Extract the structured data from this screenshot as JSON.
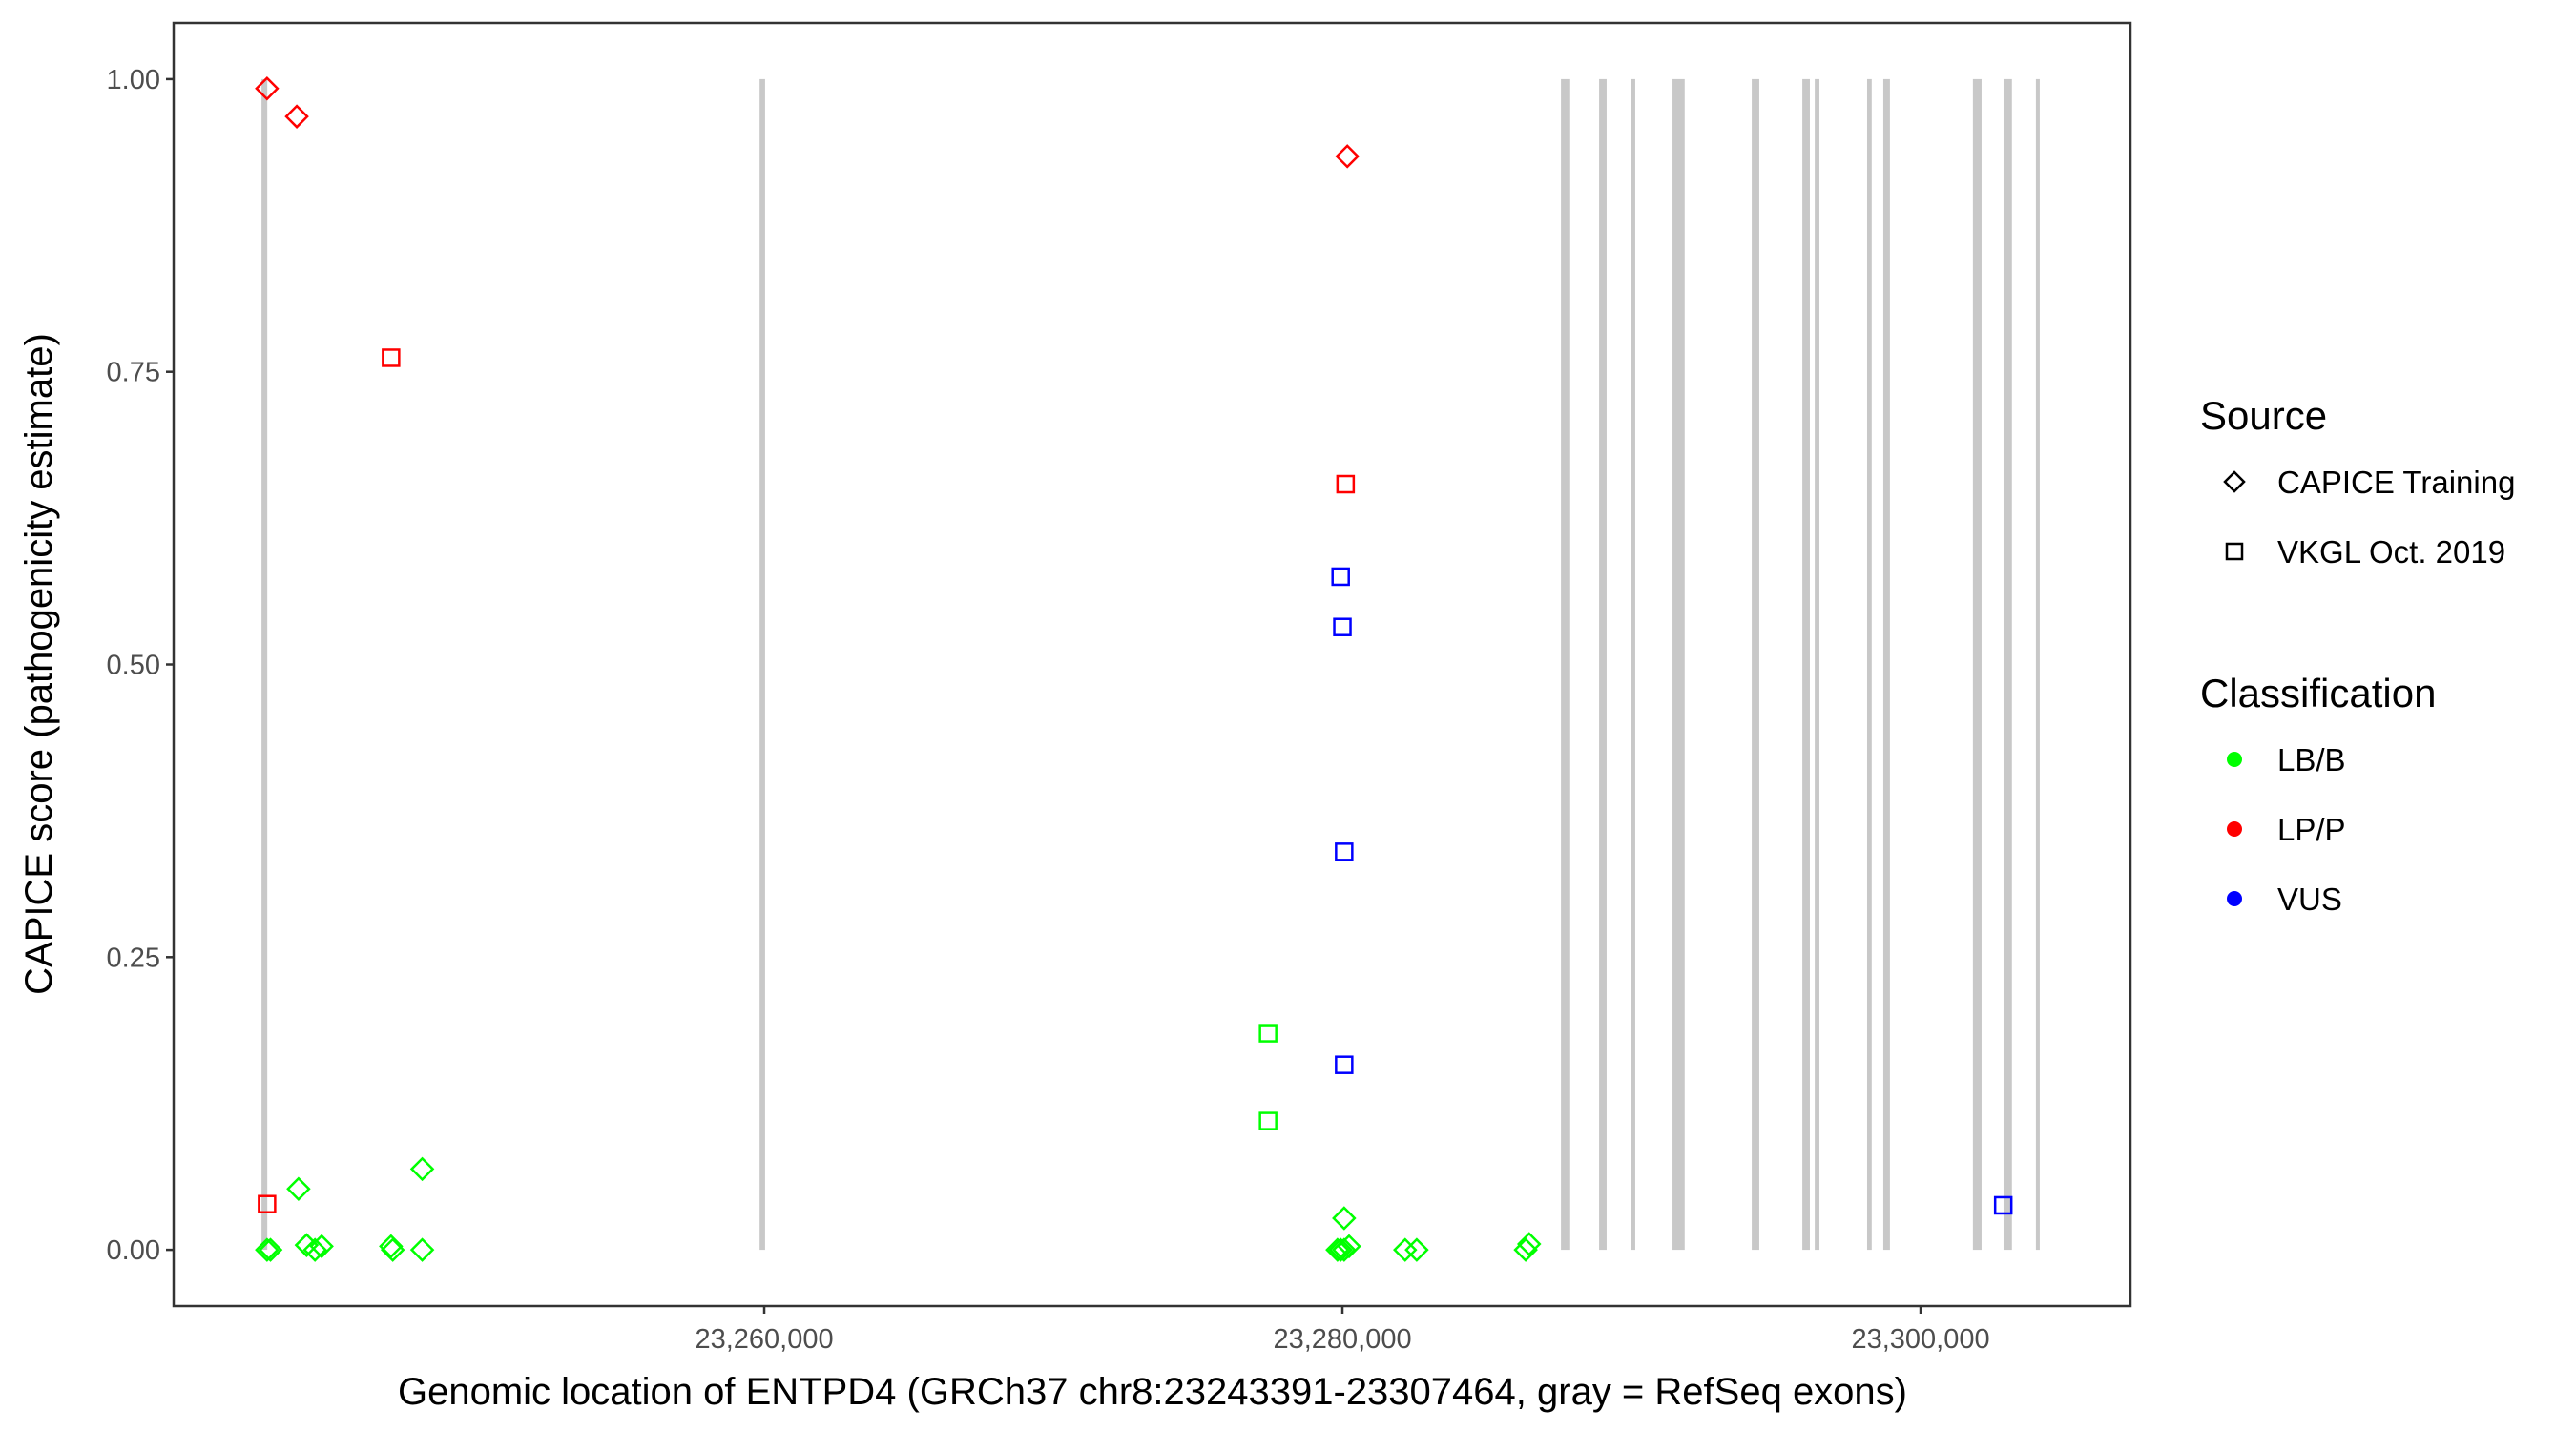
{
  "chart_data": {
    "type": "scatter",
    "xlabel": "Genomic location of ENTPD4 (GRCh37 chr8:23243391-23307464, gray = RefSeq exons)",
    "ylabel": "CAPICE score (pathogenicity estimate)",
    "xlim": [
      23239570,
      23307260
    ],
    "ylim": [
      -0.048,
      1.048
    ],
    "x_ticks": [
      23260000,
      23280000,
      23300000
    ],
    "x_tick_labels": [
      "23,260,000",
      "23,280,000",
      "23,300,000"
    ],
    "y_ticks": [
      0,
      0.25,
      0.5,
      0.75,
      1.0
    ],
    "y_tick_labels": [
      "0.00",
      "0.25",
      "0.50",
      "0.75",
      "1.00"
    ],
    "grid": false,
    "legend_placement": "right",
    "exon_color": "#c8c8c8",
    "exons": [
      [
        23242610,
        23242810
      ],
      [
        23259840,
        23260030
      ],
      [
        23287560,
        23287880
      ],
      [
        23288880,
        23289140
      ],
      [
        23289970,
        23290130
      ],
      [
        23291420,
        23291840
      ],
      [
        23294160,
        23294420
      ],
      [
        23295910,
        23296170
      ],
      [
        23296340,
        23296500
      ],
      [
        23298150,
        23298310
      ],
      [
        23298710,
        23298940
      ],
      [
        23301810,
        23302110
      ],
      [
        23302870,
        23303160
      ],
      [
        23303990,
        23304090
      ]
    ],
    "legend": {
      "source": {
        "title": "Source",
        "items": [
          {
            "label": "CAPICE Training",
            "shape": "diamond"
          },
          {
            "label": "VKGL Oct. 2019",
            "shape": "square"
          }
        ]
      },
      "classification": {
        "title": "Classification",
        "items": [
          {
            "label": "LB/B",
            "color": "#00ff00"
          },
          {
            "label": "LP/P",
            "color": "#ff0000"
          },
          {
            "label": "VUS",
            "color": "#0000ff"
          }
        ]
      }
    },
    "points": [
      {
        "x": 23242800,
        "y": 0.992,
        "source": "CAPICE Training",
        "class": "LP/P"
      },
      {
        "x": 23243830,
        "y": 0.968,
        "source": "CAPICE Training",
        "class": "LP/P"
      },
      {
        "x": 23247090,
        "y": 0.762,
        "source": "VKGL Oct. 2019",
        "class": "LP/P"
      },
      {
        "x": 23242800,
        "y": 0.039,
        "source": "VKGL Oct. 2019",
        "class": "LP/P"
      },
      {
        "x": 23243890,
        "y": 0.052,
        "source": "CAPICE Training",
        "class": "LB/B"
      },
      {
        "x": 23248170,
        "y": 0.069,
        "source": "CAPICE Training",
        "class": "LB/B"
      },
      {
        "x": 23242800,
        "y": 0.0,
        "source": "CAPICE Training",
        "class": "LB/B"
      },
      {
        "x": 23242920,
        "y": 0.0,
        "source": "CAPICE Training",
        "class": "LB/B"
      },
      {
        "x": 23244170,
        "y": 0.004,
        "source": "CAPICE Training",
        "class": "LB/B"
      },
      {
        "x": 23244460,
        "y": 0.0,
        "source": "CAPICE Training",
        "class": "LB/B"
      },
      {
        "x": 23244690,
        "y": 0.003,
        "source": "CAPICE Training",
        "class": "LB/B"
      },
      {
        "x": 23247090,
        "y": 0.003,
        "source": "CAPICE Training",
        "class": "LB/B"
      },
      {
        "x": 23247150,
        "y": 0.0,
        "source": "CAPICE Training",
        "class": "LB/B"
      },
      {
        "x": 23248170,
        "y": 0.0,
        "source": "CAPICE Training",
        "class": "LB/B"
      },
      {
        "x": 23280170,
        "y": 0.934,
        "source": "CAPICE Training",
        "class": "LP/P"
      },
      {
        "x": 23280110,
        "y": 0.654,
        "source": "VKGL Oct. 2019",
        "class": "LP/P"
      },
      {
        "x": 23279940,
        "y": 0.575,
        "source": "VKGL Oct. 2019",
        "class": "VUS"
      },
      {
        "x": 23280000,
        "y": 0.532,
        "source": "VKGL Oct. 2019",
        "class": "VUS"
      },
      {
        "x": 23280060,
        "y": 0.34,
        "source": "VKGL Oct. 2019",
        "class": "VUS"
      },
      {
        "x": 23280060,
        "y": 0.158,
        "source": "VKGL Oct. 2019",
        "class": "VUS"
      },
      {
        "x": 23277430,
        "y": 0.185,
        "source": "VKGL Oct. 2019",
        "class": "LB/B"
      },
      {
        "x": 23277430,
        "y": 0.11,
        "source": "VKGL Oct. 2019",
        "class": "LB/B"
      },
      {
        "x": 23280060,
        "y": 0.027,
        "source": "CAPICE Training",
        "class": "LB/B"
      },
      {
        "x": 23279830,
        "y": 0.0,
        "source": "CAPICE Training",
        "class": "LB/B"
      },
      {
        "x": 23279940,
        "y": 0.0,
        "source": "CAPICE Training",
        "class": "LB/B"
      },
      {
        "x": 23280060,
        "y": 0.0,
        "source": "CAPICE Training",
        "class": "LB/B"
      },
      {
        "x": 23280230,
        "y": 0.003,
        "source": "CAPICE Training",
        "class": "LB/B"
      },
      {
        "x": 23282170,
        "y": 0.0,
        "source": "CAPICE Training",
        "class": "LB/B"
      },
      {
        "x": 23282570,
        "y": 0.0,
        "source": "CAPICE Training",
        "class": "LB/B"
      },
      {
        "x": 23286340,
        "y": 0.0,
        "source": "CAPICE Training",
        "class": "LB/B"
      },
      {
        "x": 23286460,
        "y": 0.005,
        "source": "CAPICE Training",
        "class": "LB/B"
      },
      {
        "x": 23302860,
        "y": 0.038,
        "source": "VKGL Oct. 2019",
        "class": "VUS"
      }
    ]
  }
}
